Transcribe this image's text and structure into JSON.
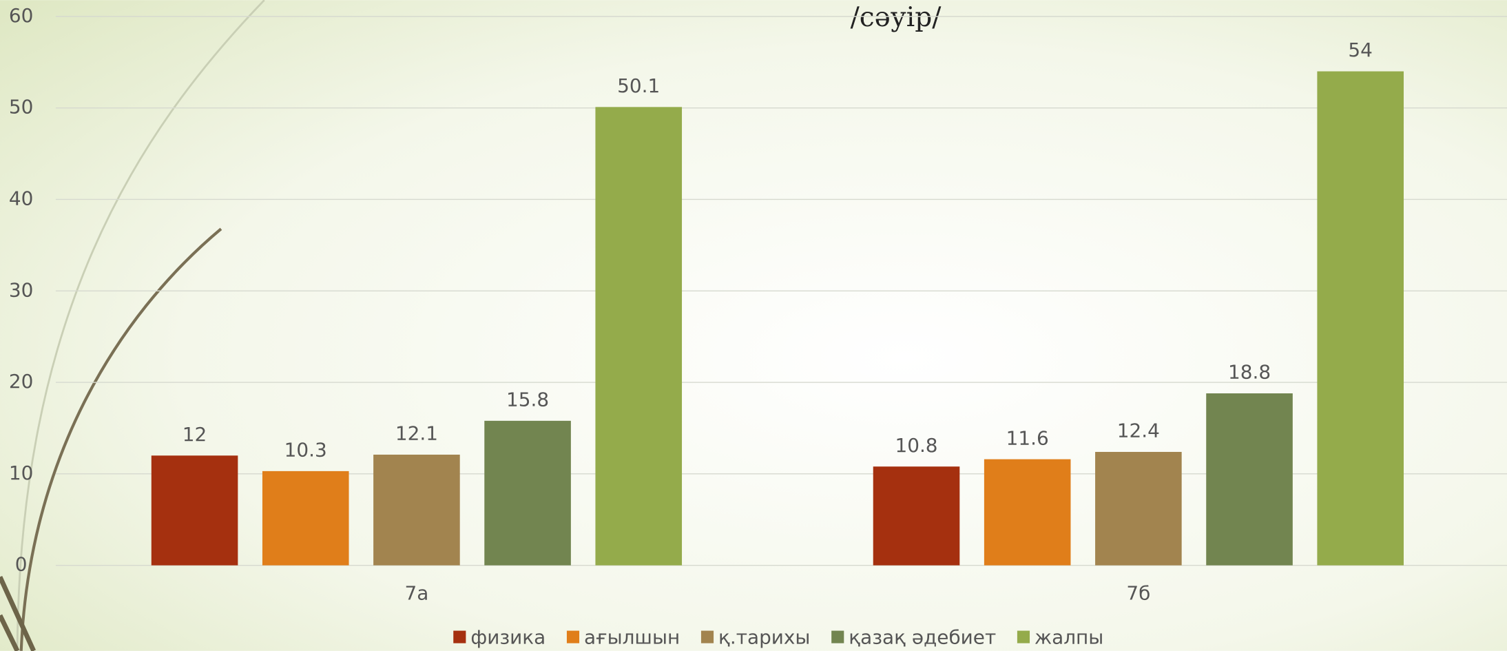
{
  "chart_data": {
    "type": "bar",
    "title": "/сәуір/",
    "categories": [
      "7а",
      "7б"
    ],
    "series": [
      {
        "name": "физика",
        "color": "#a5300f",
        "values": [
          12,
          10.8
        ]
      },
      {
        "name": "ағылшын",
        "color": "#e07e1a",
        "values": [
          10.3,
          11.6
        ]
      },
      {
        "name": "қ.тарихы",
        "color": "#a2844f",
        "values": [
          12.1,
          12.4
        ]
      },
      {
        "name": "қазақ әдебиет",
        "color": "#728550",
        "values": [
          15.8,
          18.8
        ]
      },
      {
        "name": "жалпы",
        "color": "#94ab4b",
        "values": [
          50.1,
          54
        ]
      }
    ],
    "ylim": [
      0,
      60
    ],
    "yticks": [
      0,
      10,
      20,
      30,
      40,
      50,
      60
    ],
    "grid": true,
    "legend": "bottom"
  }
}
